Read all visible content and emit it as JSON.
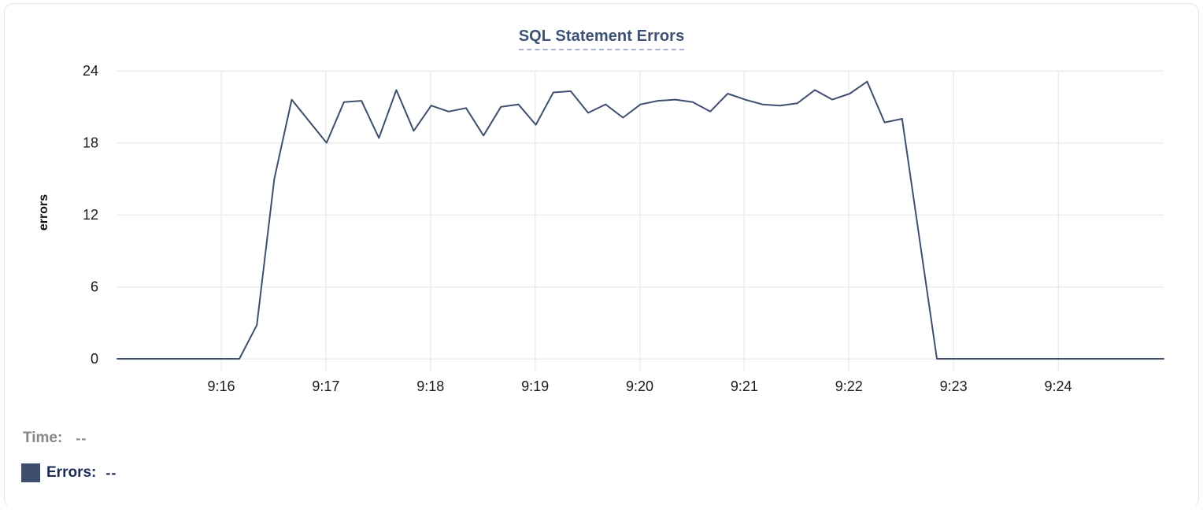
{
  "card_title": "SQL Statement Errors",
  "chart_data": {
    "type": "line",
    "title": "SQL Statement Errors",
    "xlabel": "",
    "ylabel": "errors",
    "ylim": [
      0,
      24
    ],
    "y_ticks": [
      0,
      6,
      12,
      18,
      24
    ],
    "x_tick_labels": [
      "9:16",
      "9:17",
      "9:18",
      "9:19",
      "9:20",
      "9:21",
      "9:22",
      "9:23",
      "9:24"
    ],
    "x_start": "9:15:00",
    "x_step_seconds": 10,
    "grid": true,
    "legend_position": "bottom-left",
    "series": [
      {
        "name": "Errors",
        "color": "#3e4f6e",
        "values": [
          0,
          0,
          0,
          0,
          0,
          0,
          0,
          0,
          2.8,
          15,
          21.6,
          19.8,
          18,
          21.4,
          21.5,
          18.4,
          22.4,
          19,
          21.1,
          20.6,
          20.9,
          18.6,
          21,
          21.2,
          19.5,
          22.2,
          22.3,
          20.5,
          21.2,
          20.1,
          21.2,
          21.5,
          21.6,
          21.4,
          20.6,
          22.1,
          21.6,
          21.2,
          21.1,
          21.3,
          22.4,
          21.6,
          22.1,
          23.1,
          19.7,
          20,
          10,
          0,
          0,
          0,
          0,
          0,
          0,
          0,
          0,
          0,
          0,
          0,
          0,
          0,
          0
        ]
      }
    ]
  },
  "readout": {
    "time_label": "Time:",
    "time_value": "--",
    "errors_label": "Errors:",
    "errors_value": "--"
  },
  "colors": {
    "title_text": "#3d5174",
    "title_underline": "#a8b2c9",
    "axis_text": "#1b1b1d",
    "grid_line": "#ececec",
    "series_line": "#3e4f6e",
    "time_readout_text": "#85878a",
    "errors_readout_text": "#1d2c55",
    "card_border": "#e3e4e7"
  }
}
